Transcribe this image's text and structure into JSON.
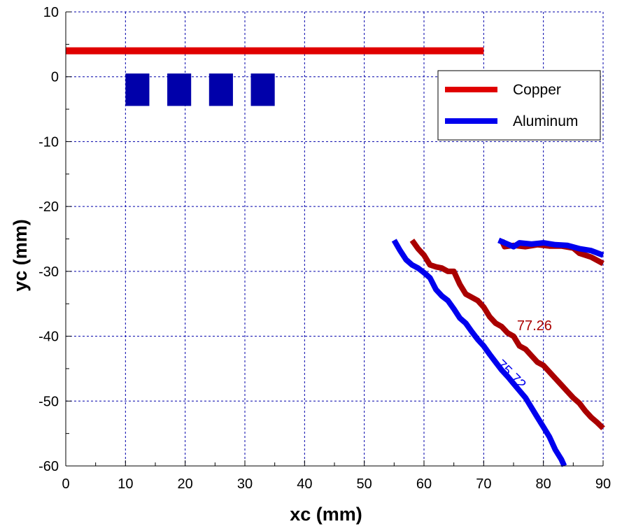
{
  "chart_data": {
    "type": "line",
    "xlabel": "xc (mm)",
    "ylabel": "yc (mm)",
    "xlim": [
      0,
      90
    ],
    "ylim": [
      -60,
      10
    ],
    "x_ticks": [
      0,
      10,
      20,
      30,
      40,
      50,
      60,
      70,
      80,
      90
    ],
    "y_ticks": [
      10,
      0,
      -10,
      -20,
      -30,
      -40,
      -50,
      -60
    ],
    "grid": true,
    "legend_position": "top-right",
    "colors": {
      "copper": "#e00000",
      "aluminum": "#0000ee",
      "copper_contour": "#aa0000",
      "aluminum_contour": "#0000ee",
      "blocks": "#0000aa",
      "grid": "#0000aa"
    },
    "legend": [
      {
        "name": "Copper",
        "color": "#e00000"
      },
      {
        "name": "Aluminum",
        "color": "#0000ee"
      }
    ],
    "copper_bar": {
      "x": [
        0,
        70
      ],
      "y": 4
    },
    "blocks": [
      {
        "x": [
          10,
          14
        ],
        "y": [
          -4.5,
          0.5
        ]
      },
      {
        "x": [
          17,
          21
        ],
        "y": [
          -4.5,
          0.5
        ]
      },
      {
        "x": [
          24,
          28
        ],
        "y": [
          -4.5,
          0.5
        ]
      },
      {
        "x": [
          31,
          35
        ],
        "y": [
          -4.5,
          0.5
        ]
      }
    ],
    "series": [
      {
        "key": "copper_contour",
        "label": "77.26",
        "segments": [
          [
            [
              58,
              -25.2
            ],
            [
              59,
              -26.5
            ],
            [
              60,
              -27.5
            ],
            [
              61,
              -29
            ],
            [
              62,
              -29.3
            ],
            [
              63,
              -29.5
            ],
            [
              64,
              -30
            ],
            [
              65,
              -30
            ],
            [
              66,
              -32
            ],
            [
              67,
              -33.5
            ],
            [
              69,
              -34.5
            ],
            [
              70,
              -35.5
            ],
            [
              71,
              -37
            ],
            [
              72,
              -38
            ],
            [
              73,
              -38.5
            ],
            [
              74,
              -39.5
            ],
            [
              75,
              -40
            ],
            [
              76,
              -41.5
            ],
            [
              77,
              -42
            ],
            [
              78,
              -43
            ],
            [
              79,
              -44
            ],
            [
              80,
              -44.5
            ],
            [
              81,
              -45.5
            ],
            [
              82,
              -46.5
            ],
            [
              83,
              -47.5
            ],
            [
              84,
              -48.5
            ],
            [
              85,
              -49.5
            ],
            [
              86,
              -50.3
            ],
            [
              87,
              -51.5
            ],
            [
              88,
              -52.5
            ],
            [
              89,
              -53.3
            ],
            [
              90,
              -54.2
            ]
          ],
          [
            [
              73,
              -25.2
            ],
            [
              73.5,
              -26.2
            ],
            [
              75,
              -26
            ],
            [
              77,
              -26.2
            ],
            [
              79,
              -25.9
            ],
            [
              81,
              -26.1
            ],
            [
              83,
              -26.1
            ],
            [
              85,
              -26.4
            ],
            [
              86,
              -27.2
            ],
            [
              88,
              -27.8
            ],
            [
              90,
              -28.8
            ]
          ]
        ]
      },
      {
        "key": "aluminum_contour",
        "label": "75.72",
        "segments": [
          [
            [
              55,
              -25.2
            ],
            [
              56,
              -26.8
            ],
            [
              57,
              -28.2
            ],
            [
              58,
              -29
            ],
            [
              59,
              -29.5
            ],
            [
              60,
              -30.2
            ],
            [
              61,
              -31
            ],
            [
              62,
              -32.8
            ],
            [
              63,
              -33.8
            ],
            [
              64,
              -34.5
            ],
            [
              65,
              -35.8
            ],
            [
              66,
              -37.2
            ],
            [
              67,
              -38
            ],
            [
              68,
              -39.3
            ],
            [
              69,
              -40.5
            ],
            [
              70,
              -41.5
            ],
            [
              71,
              -42.8
            ],
            [
              72,
              -44
            ],
            [
              73,
              -45.2
            ],
            [
              74,
              -46.2
            ],
            [
              75,
              -47.3
            ],
            [
              76,
              -48.4
            ],
            [
              77,
              -49.5
            ],
            [
              78,
              -51
            ],
            [
              79,
              -52.5
            ],
            [
              80,
              -54
            ],
            [
              81,
              -55.5
            ],
            [
              82,
              -57.5
            ],
            [
              83,
              -59
            ],
            [
              83.5,
              -60
            ]
          ],
          [
            [
              72.5,
              -25.2
            ],
            [
              74,
              -25.8
            ],
            [
              75,
              -26.2
            ],
            [
              76,
              -25.6
            ],
            [
              78,
              -25.8
            ],
            [
              80,
              -25.6
            ],
            [
              82,
              -25.9
            ],
            [
              84,
              -26
            ],
            [
              86,
              -26.5
            ],
            [
              88,
              -26.8
            ],
            [
              90,
              -27.5
            ]
          ]
        ]
      }
    ],
    "contour_labels": [
      {
        "text": "77.26",
        "x": 78.5,
        "y": -38.5,
        "rotate": 0,
        "color": "#aa0000"
      },
      {
        "text": "75.72",
        "x": 74.5,
        "y": -46,
        "rotate": 45,
        "color": "#0000ee"
      }
    ]
  }
}
